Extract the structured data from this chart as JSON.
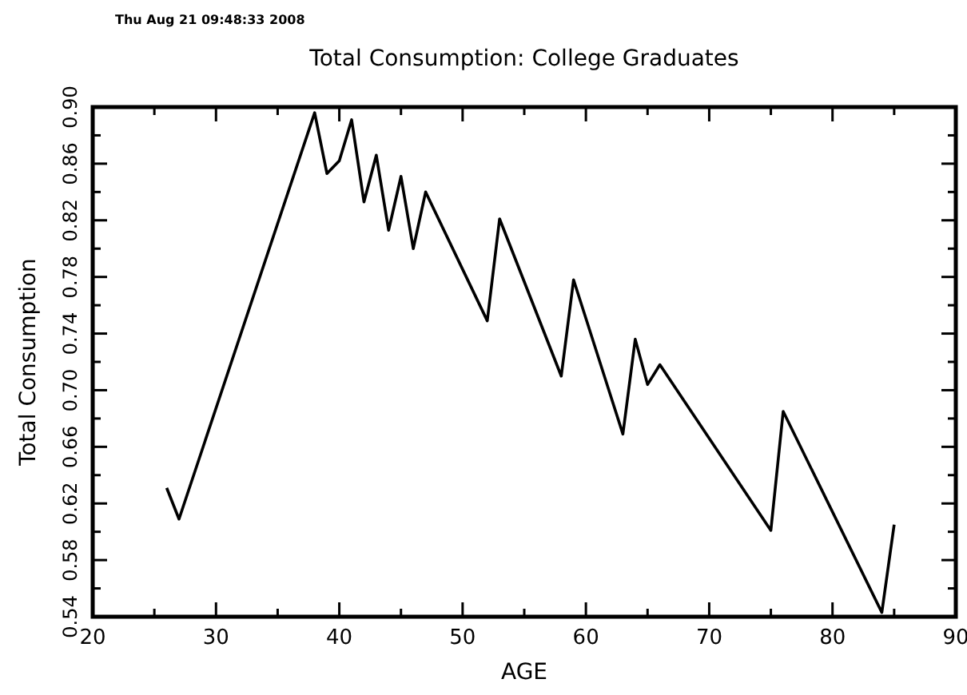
{
  "chart_data": {
    "type": "line",
    "title": "Total Consumption: College Graduates",
    "xlabel": "AGE",
    "ylabel": "Total Consumption",
    "annotations": [
      "Thu Aug 21 09:48:33 2008"
    ],
    "x": [
      26,
      27,
      38,
      39,
      40,
      41,
      42,
      43,
      44,
      45,
      46,
      47,
      52,
      53,
      58,
      59,
      63,
      64,
      65,
      66,
      75,
      76,
      84,
      85
    ],
    "series": [
      {
        "color": "#000000",
        "values": [
          0.631,
          0.609,
          0.896,
          0.853,
          0.862,
          0.891,
          0.833,
          0.866,
          0.813,
          0.851,
          0.8,
          0.84,
          0.749,
          0.821,
          0.71,
          0.778,
          0.669,
          0.736,
          0.704,
          0.718,
          0.601,
          0.685,
          0.543,
          0.605
        ]
      }
    ],
    "xlim": [
      20,
      90
    ],
    "ylim": [
      0.54,
      0.9
    ],
    "xticks": [
      20,
      {
        "value": 25,
        "label": null
      },
      30,
      {
        "value": 35,
        "label": null
      },
      40,
      {
        "value": 45,
        "label": null
      },
      50,
      {
        "value": 55,
        "label": null
      },
      60,
      {
        "value": 65,
        "label": null
      },
      70,
      {
        "value": 75,
        "label": null
      },
      80,
      {
        "value": 85,
        "label": null
      },
      90
    ],
    "yticks": [
      0.54,
      {
        "value": 0.56,
        "label": null
      },
      0.58,
      {
        "value": 0.6,
        "label": null
      },
      0.62,
      {
        "value": 0.64,
        "label": null
      },
      0.66,
      {
        "value": 0.68,
        "label": null
      },
      {
        "value": 0.7,
        "label": "0.70"
      },
      {
        "value": 0.72,
        "label": null
      },
      0.74,
      {
        "value": 0.76,
        "label": null
      },
      0.78,
      {
        "value": 0.8,
        "label": null
      },
      0.82,
      {
        "value": 0.84,
        "label": null
      },
      0.86,
      {
        "value": 0.88,
        "label": null
      },
      {
        "value": 0.9,
        "label": "0.90"
      }
    ],
    "grid": false,
    "marker": "none",
    "line_style": "solid"
  }
}
